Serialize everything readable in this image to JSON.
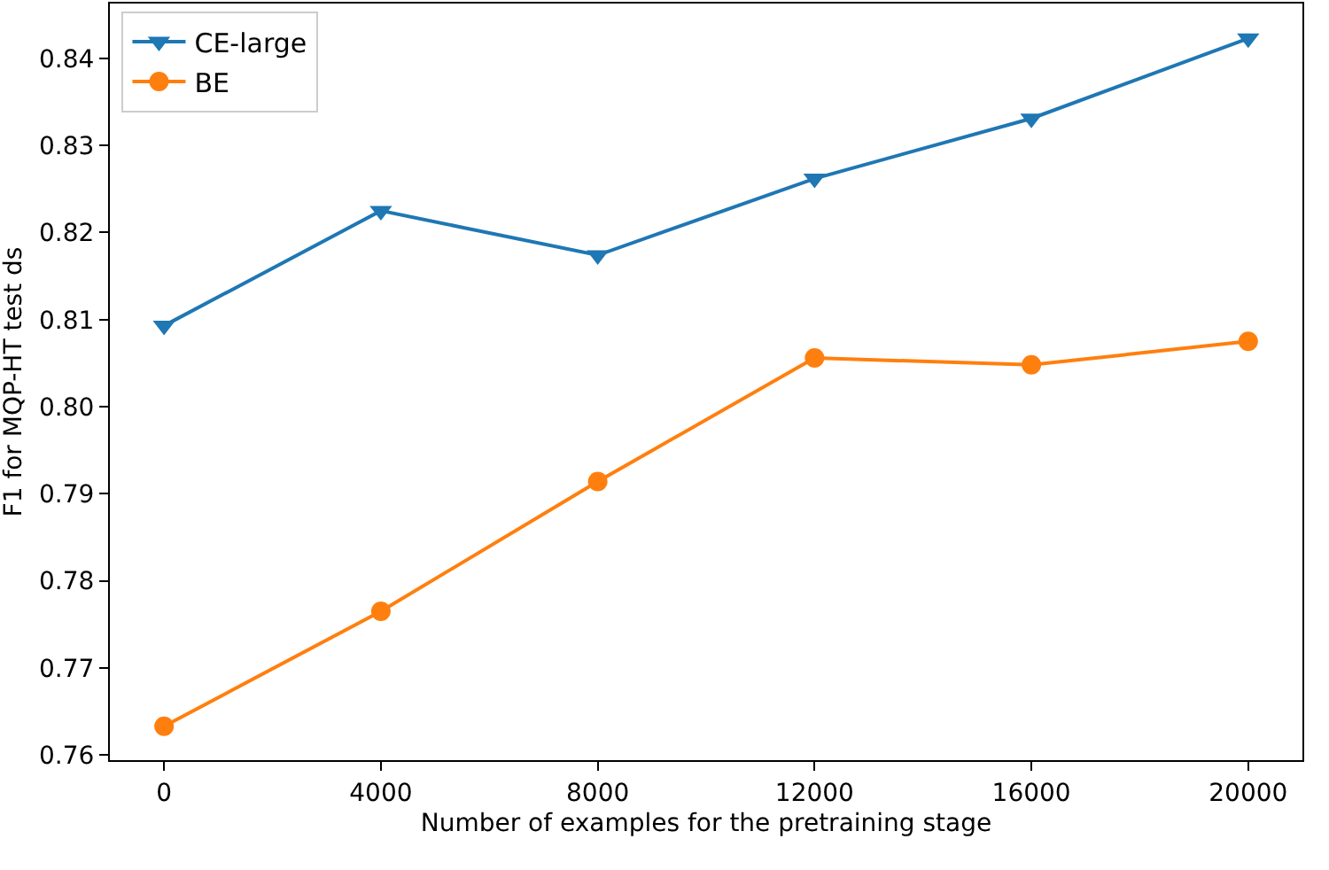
{
  "chart_data": {
    "type": "line",
    "xlabel": "Number of examples for the pretraining stage",
    "ylabel": "F1 for MQP-HT test ds",
    "x": [
      0,
      4000,
      8000,
      12000,
      16000,
      20000
    ],
    "series": [
      {
        "name": "CE-large",
        "color": "#1f77b4",
        "marker": "triangle",
        "values": [
          0.8093,
          0.8225,
          0.8174,
          0.8262,
          0.8331,
          0.8423
        ]
      },
      {
        "name": "BE",
        "color": "#ff7f0e",
        "marker": "circle",
        "values": [
          0.7633,
          0.7765,
          0.7914,
          0.8056,
          0.8048,
          0.8075
        ]
      }
    ],
    "xlim": [
      -1000,
      21000
    ],
    "xticks": [
      0,
      4000,
      8000,
      12000,
      16000,
      20000
    ],
    "ylim": [
      0.7594,
      0.8463
    ],
    "yticks": [
      0.76,
      0.77,
      0.78,
      0.79,
      {
        "value": 0.8,
        "label": "0.80"
      },
      0.81,
      0.82,
      0.83,
      0.84
    ],
    "legend": "top left",
    "line_style": "solid"
  }
}
